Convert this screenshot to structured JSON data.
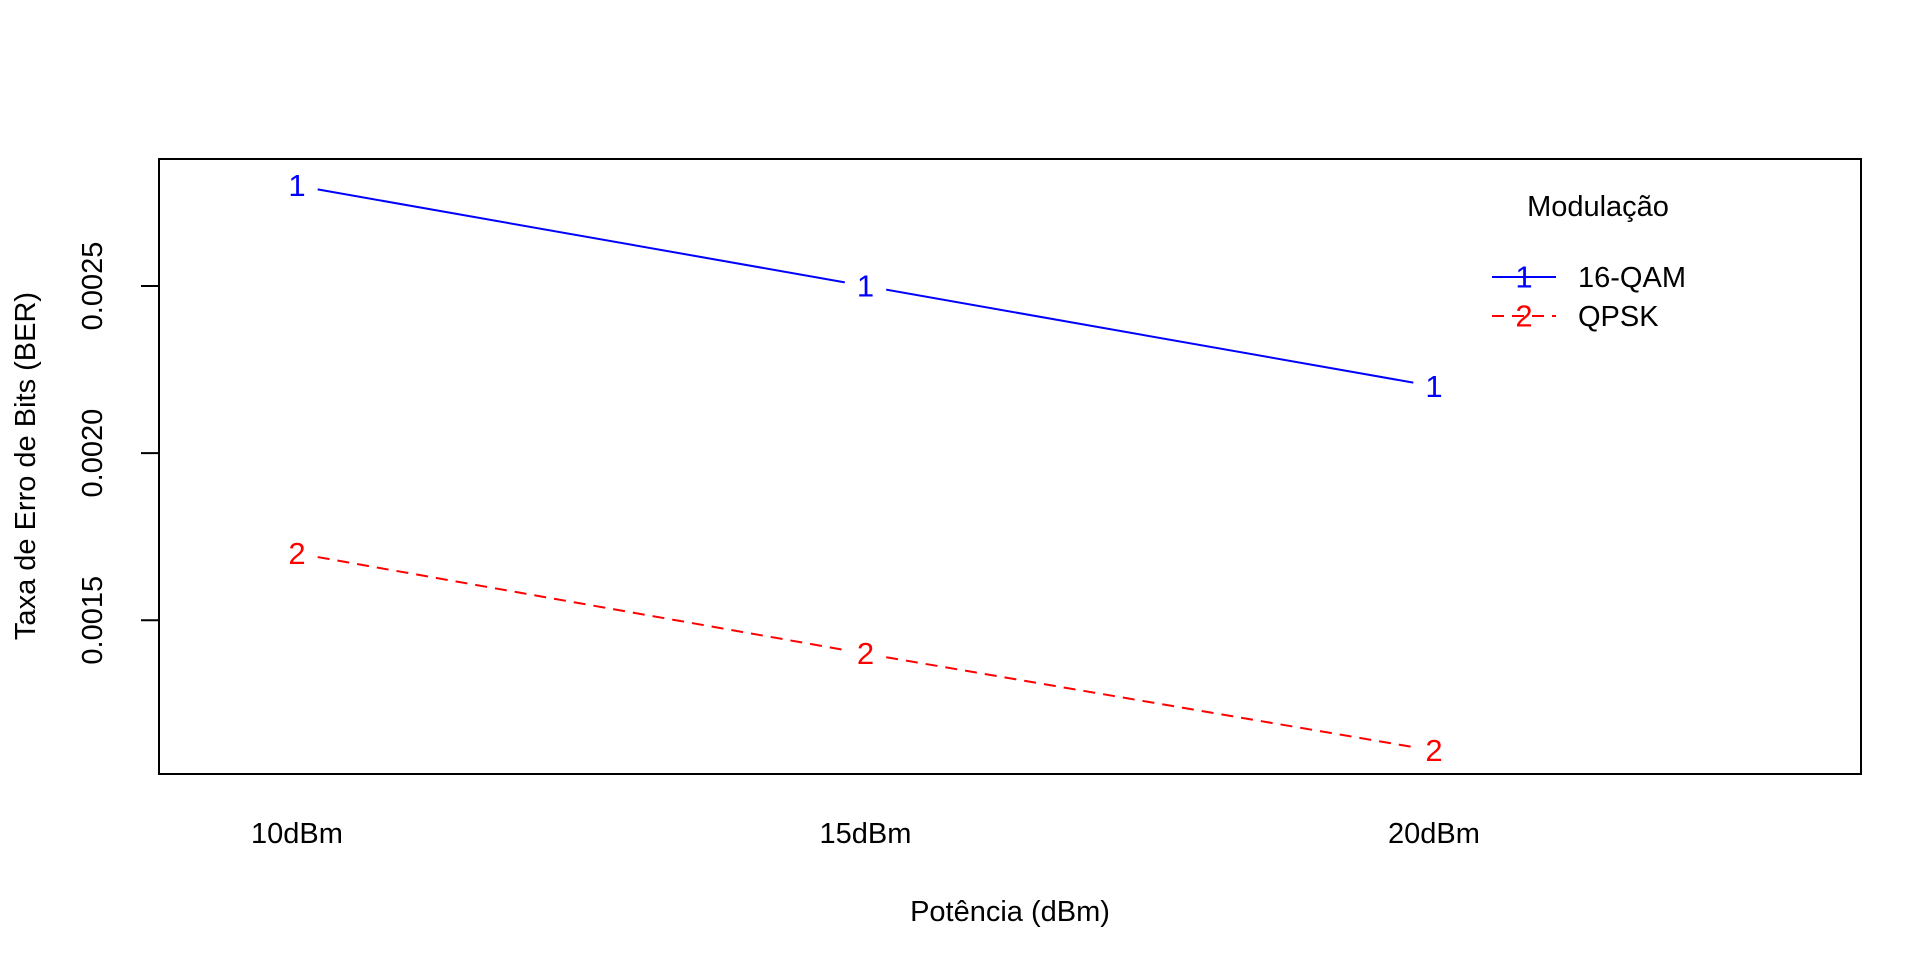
{
  "chart_data": {
    "type": "line",
    "categories": [
      "10dBm",
      "15dBm",
      "20dBm"
    ],
    "xlabel": "Potência (dBm)",
    "ylabel": "Taxa de Erro de Bits (BER)",
    "ylim": [
      0.00104,
      0.00288
    ],
    "yticks": [
      0.0015,
      0.002,
      0.0025
    ],
    "ytick_labels": [
      "0.0015",
      "0.0020",
      "0.0025"
    ],
    "grid": false,
    "legend": {
      "title": "Modulação",
      "placement": "top-right"
    },
    "series": [
      {
        "name": "16-QAM",
        "marker_label": "1",
        "color": "#0000ff",
        "line_style": "solid",
        "values": [
          0.0028,
          0.0025,
          0.0022
        ]
      },
      {
        "name": "QPSK",
        "marker_label": "2",
        "color": "#ff0000",
        "line_style": "dashed",
        "values": [
          0.0017,
          0.0014,
          0.00111
        ]
      }
    ]
  }
}
